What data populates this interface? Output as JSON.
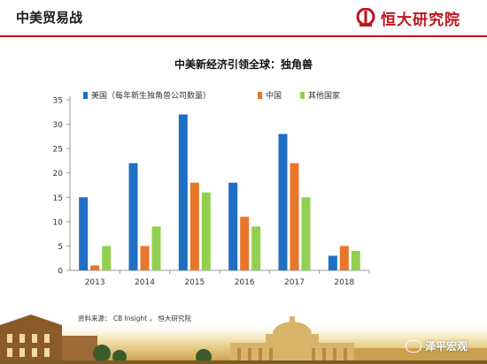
{
  "header": {
    "title": "中美贸易战",
    "brand_name": "恒大研究院"
  },
  "footer": {
    "source": "资料来源：  CB Insight ，  恒大研究院",
    "watermark": "泽平宏观"
  },
  "colors": {
    "accent": "#c0141c",
    "series": [
      "#1f6fc5",
      "#e8762b",
      "#92d050"
    ]
  },
  "chart_data": {
    "type": "bar",
    "title": "中美新经济引领全球：独角兽",
    "xlabel": "",
    "ylabel": "",
    "categories": [
      "2013",
      "2014",
      "2015",
      "2016",
      "2017",
      "2018"
    ],
    "series": [
      {
        "name": "美国（每年新生独角兽公司数量）",
        "values": [
          15,
          22,
          32,
          18,
          28,
          3
        ]
      },
      {
        "name": "中国",
        "values": [
          1,
          5,
          18,
          11,
          22,
          5
        ]
      },
      {
        "name": "其他国家",
        "values": [
          5,
          9,
          16,
          9,
          15,
          4
        ]
      }
    ],
    "ylim": [
      0,
      35
    ],
    "yticks": [
      0,
      5,
      10,
      15,
      20,
      25,
      30,
      35
    ],
    "grid": false,
    "legend_position": "top"
  }
}
